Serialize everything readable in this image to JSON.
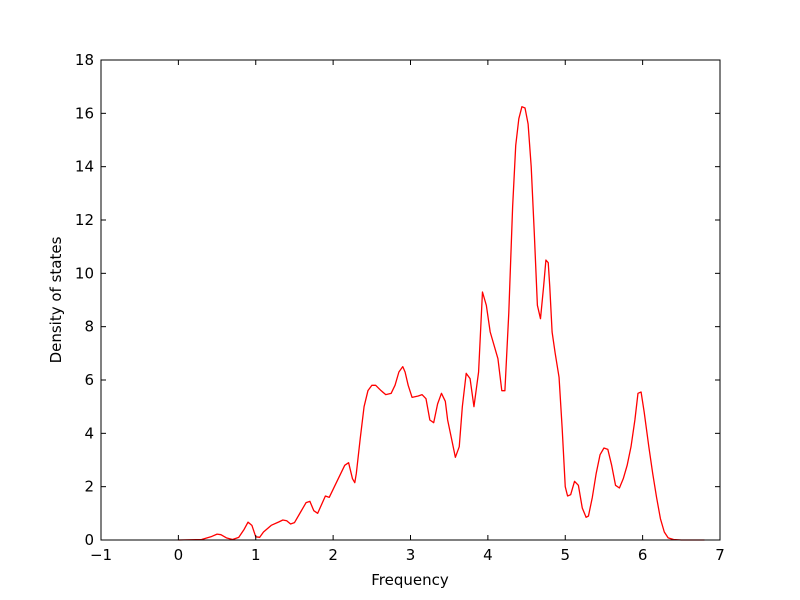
{
  "chart_data": {
    "type": "line",
    "title": "",
    "xlabel": "Frequency",
    "ylabel": "Density of states",
    "xlim": [
      -1,
      7
    ],
    "ylim": [
      0,
      18
    ],
    "xticks": [
      -1,
      0,
      1,
      2,
      3,
      4,
      5,
      6,
      7
    ],
    "yticks": [
      0,
      2,
      4,
      6,
      8,
      10,
      12,
      14,
      16,
      18
    ],
    "xtick_labels": [
      "−1",
      "0",
      "1",
      "2",
      "3",
      "4",
      "5",
      "6",
      "7"
    ],
    "ytick_labels": [
      "0",
      "2",
      "4",
      "6",
      "8",
      "10",
      "12",
      "14",
      "16",
      "18"
    ],
    "grid": false,
    "series": [
      {
        "color": "#ff0000",
        "x": [
          0.0,
          0.3,
          0.42,
          0.5,
          0.55,
          0.62,
          0.7,
          0.78,
          0.85,
          0.9,
          0.95,
          1.0,
          1.05,
          1.1,
          1.2,
          1.3,
          1.35,
          1.4,
          1.45,
          1.5,
          1.58,
          1.65,
          1.7,
          1.75,
          1.8,
          1.9,
          1.95,
          2.0,
          2.05,
          2.1,
          2.15,
          2.2,
          2.25,
          2.28,
          2.3,
          2.35,
          2.4,
          2.45,
          2.5,
          2.55,
          2.62,
          2.68,
          2.75,
          2.8,
          2.85,
          2.9,
          2.93,
          2.97,
          3.02,
          3.1,
          3.15,
          3.2,
          3.25,
          3.3,
          3.35,
          3.4,
          3.45,
          3.48,
          3.53,
          3.58,
          3.63,
          3.67,
          3.72,
          3.77,
          3.82,
          3.88,
          3.93,
          3.98,
          4.03,
          4.08,
          4.13,
          4.18,
          4.22,
          4.27,
          4.32,
          4.36,
          4.4,
          4.44,
          4.48,
          4.52,
          4.56,
          4.6,
          4.64,
          4.68,
          4.72,
          4.75,
          4.78,
          4.8,
          4.83,
          4.87,
          4.92,
          4.96,
          5.0,
          5.03,
          5.07,
          5.12,
          5.17,
          5.22,
          5.27,
          5.3,
          5.35,
          5.4,
          5.45,
          5.5,
          5.55,
          5.6,
          5.65,
          5.7,
          5.75,
          5.8,
          5.85,
          5.9,
          5.94,
          5.98,
          6.02,
          6.08,
          6.13,
          6.18,
          6.23,
          6.28,
          6.33,
          6.4,
          6.5,
          6.6,
          6.7,
          6.8
        ],
        "y": [
          0.0,
          0.02,
          0.12,
          0.22,
          0.2,
          0.08,
          0.02,
          0.1,
          0.4,
          0.67,
          0.55,
          0.12,
          0.1,
          0.3,
          0.55,
          0.68,
          0.75,
          0.72,
          0.6,
          0.65,
          1.05,
          1.4,
          1.45,
          1.1,
          1.0,
          1.65,
          1.6,
          1.9,
          2.2,
          2.5,
          2.8,
          2.9,
          2.3,
          2.15,
          2.5,
          3.8,
          5.0,
          5.6,
          5.8,
          5.8,
          5.6,
          5.45,
          5.5,
          5.8,
          6.3,
          6.5,
          6.3,
          5.8,
          5.35,
          5.4,
          5.45,
          5.3,
          4.5,
          4.4,
          5.1,
          5.5,
          5.2,
          4.5,
          3.8,
          3.1,
          3.5,
          5.0,
          6.25,
          6.05,
          5.0,
          6.3,
          9.3,
          8.8,
          7.8,
          7.3,
          6.8,
          5.6,
          5.6,
          8.5,
          12.5,
          14.8,
          15.8,
          16.25,
          16.2,
          15.6,
          14.0,
          11.5,
          8.8,
          8.3,
          9.5,
          10.5,
          10.4,
          9.5,
          7.8,
          7.0,
          6.1,
          4.2,
          2.0,
          1.65,
          1.7,
          2.2,
          2.05,
          1.2,
          0.85,
          0.9,
          1.6,
          2.5,
          3.2,
          3.45,
          3.4,
          2.8,
          2.05,
          1.95,
          2.3,
          2.8,
          3.5,
          4.5,
          5.5,
          5.55,
          4.8,
          3.5,
          2.5,
          1.6,
          0.8,
          0.3,
          0.08,
          0.02,
          0.0,
          0.0,
          0.0,
          0.0
        ]
      }
    ]
  }
}
